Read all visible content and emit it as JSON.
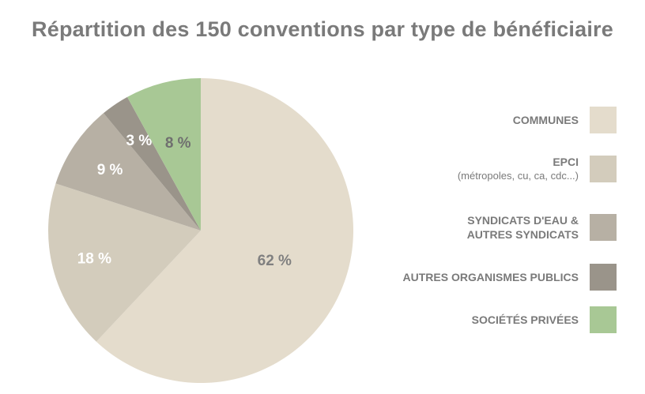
{
  "title": "Répartition des 150 conventions par type de bénéficiaire",
  "chart_data": {
    "type": "pie",
    "title": "Répartition des 150 conventions par type de bénéficiaire",
    "slices": [
      {
        "name": "COMMUNES",
        "value": 62,
        "label": "62 %",
        "color": "#e4dccc",
        "label_color": "#808080"
      },
      {
        "name": "EPCI",
        "sub": "(métropoles, cu, ca, cdc…)",
        "value": 18,
        "label": "18 %",
        "color": "#d3ccbc",
        "label_color": "#ffffff"
      },
      {
        "name": "SYNDICATS D'EAU & AUTRES SYNDICATS",
        "value": 9,
        "label": "9 %",
        "color": "#b7b0a4",
        "label_color": "#ffffff"
      },
      {
        "name": "AUTRES ORGANISMES PUBLICS",
        "value": 3,
        "label": "3 %",
        "color": "#9a948a",
        "label_color": "#ffffff"
      },
      {
        "name": "SOCIÉTÉS PRIVÉES",
        "value": 8,
        "label": "8 %",
        "color": "#a8c895",
        "label_color": "#6f6f6f"
      }
    ],
    "start": "12 o'clock",
    "direction": "clockwise",
    "legend_position": "right"
  },
  "legend": [
    {
      "line1": "COMMUNES",
      "line2": "",
      "sub": "",
      "color": "#e4dccc"
    },
    {
      "line1": "EPCI",
      "line2": "",
      "sub": "(métropoles, cu, ca, cdc...)",
      "color": "#d3ccbc"
    },
    {
      "line1": "SYNDICATS D'EAU &",
      "line2": "AUTRES SYNDICATS",
      "sub": "",
      "color": "#b7b0a4"
    },
    {
      "line1": "AUTRES ORGANISMES PUBLICS",
      "line2": "",
      "sub": "",
      "color": "#9a948a"
    },
    {
      "line1": "SOCIÉTÉS PRIVÉES",
      "line2": "",
      "sub": "",
      "color": "#a8c895"
    }
  ]
}
